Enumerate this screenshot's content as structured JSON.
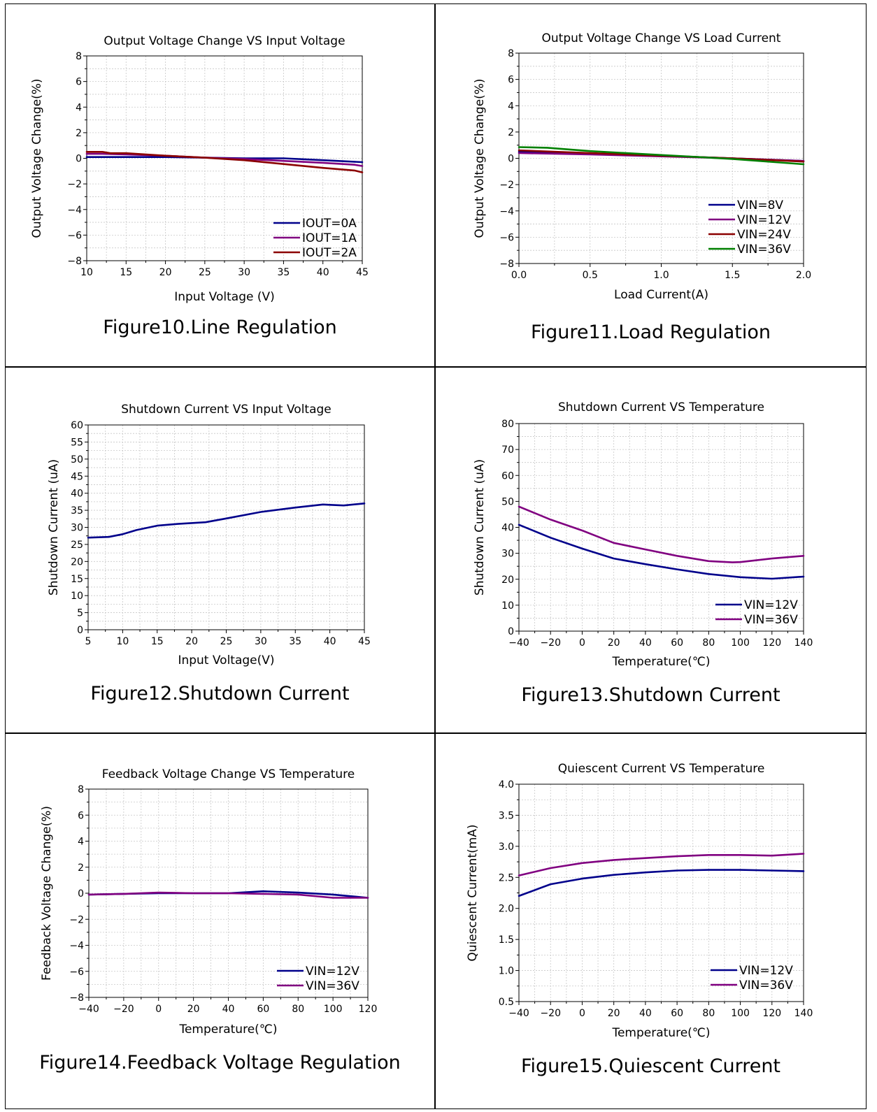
{
  "figures": [
    {
      "caption": "Figure10.Line Regulation",
      "chart_data": {
        "type": "line",
        "title": "Output Voltage Change VS Input Voltage",
        "xlabel": "Input Voltage (V)",
        "ylabel": "Output Voltage Change(%)",
        "xlim": [
          10,
          45
        ],
        "ylim": [
          -8,
          8
        ],
        "xticks": [
          10,
          15,
          20,
          25,
          30,
          35,
          40,
          45
        ],
        "yticks": [
          -8,
          -6,
          -4,
          -2,
          0,
          2,
          4,
          6,
          8
        ],
        "xtick_labels": [
          "10",
          "15",
          "20",
          "25",
          "30",
          "35",
          "40",
          "45"
        ],
        "ytick_labels": [
          "−8",
          "−6",
          "−4",
          "−2",
          "0",
          "2",
          "4",
          "6",
          "8"
        ],
        "legend_position": "bottom-right",
        "grid": true,
        "series": [
          {
            "name": "IOUT=0A",
            "color": "#00008b",
            "x": [
              10,
              12,
              15,
              20,
              25,
              30,
              35,
              40,
              45
            ],
            "y": [
              0.1,
              0.1,
              0.1,
              0.1,
              0.05,
              0.0,
              0.0,
              -0.15,
              -0.3
            ]
          },
          {
            "name": "IOUT=1A",
            "color": "#800080",
            "x": [
              10,
              12,
              15,
              20,
              25,
              30,
              35,
              40,
              44,
              45
            ],
            "y": [
              0.35,
              0.35,
              0.3,
              0.2,
              0.05,
              -0.05,
              -0.2,
              -0.35,
              -0.5,
              -0.6
            ]
          },
          {
            "name": "IOUT=2A",
            "color": "#8b0000",
            "x": [
              10,
              12,
              13,
              15,
              20,
              25,
              30,
              35,
              40,
              44,
              45
            ],
            "y": [
              0.5,
              0.5,
              0.4,
              0.4,
              0.2,
              0.05,
              -0.15,
              -0.45,
              -0.75,
              -0.95,
              -1.1
            ]
          }
        ]
      }
    },
    {
      "caption": "Figure11.Load Regulation",
      "chart_data": {
        "type": "line",
        "title": "Output Voltage Change VS Load Current",
        "xlabel": "Load Current(A)",
        "ylabel": "Output Voltage Change(%)",
        "xlim": [
          0,
          2
        ],
        "ylim": [
          -8,
          8
        ],
        "xticks": [
          0,
          0.5,
          1,
          1.5,
          2
        ],
        "yticks": [
          -8,
          -6,
          -4,
          -2,
          0,
          2,
          4,
          6,
          8
        ],
        "xtick_labels": [
          "0.0",
          "0.5",
          "1.0",
          "1.5",
          "2.0"
        ],
        "ytick_labels": [
          "−8",
          "−6",
          "−4",
          "−2",
          "0",
          "2",
          "4",
          "6",
          "8"
        ],
        "legend_position": "bottom-right",
        "grid": true,
        "series": [
          {
            "name": "VIN=8V",
            "color": "#00008b",
            "x": [
              0,
              0.5,
              1.0,
              1.5,
              2.0
            ],
            "y": [
              0.5,
              0.35,
              0.2,
              0.0,
              -0.2
            ]
          },
          {
            "name": "VIN=12V",
            "color": "#800080",
            "x": [
              0,
              0.5,
              1.0,
              1.5,
              2.0
            ],
            "y": [
              0.4,
              0.3,
              0.15,
              0.0,
              -0.2
            ]
          },
          {
            "name": "VIN=24V",
            "color": "#8b0000",
            "x": [
              0,
              0.5,
              1.0,
              1.5,
              2.0
            ],
            "y": [
              0.6,
              0.4,
              0.2,
              0.0,
              -0.25
            ]
          },
          {
            "name": "VIN=36V",
            "color": "#008000",
            "x": [
              0,
              0.2,
              0.5,
              1.0,
              1.5,
              2.0
            ],
            "y": [
              0.85,
              0.8,
              0.55,
              0.25,
              -0.05,
              -0.45
            ]
          }
        ]
      }
    },
    {
      "caption": "Figure12.Shutdown Current",
      "chart_data": {
        "type": "line",
        "title": "Shutdown Current VS Input Voltage",
        "xlabel": "Input Voltage(V)",
        "ylabel": "Shutdown Current (uA)",
        "xlim": [
          5,
          45
        ],
        "ylim": [
          0,
          60
        ],
        "xticks": [
          5,
          10,
          15,
          20,
          25,
          30,
          35,
          40,
          45
        ],
        "yticks": [
          0,
          5,
          10,
          15,
          20,
          25,
          30,
          35,
          40,
          45,
          50,
          55,
          60
        ],
        "xtick_labels": [
          "5",
          "10",
          "15",
          "20",
          "25",
          "30",
          "35",
          "40",
          "45"
        ],
        "ytick_labels": [
          "0",
          "5",
          "10",
          "15",
          "20",
          "25",
          "30",
          "35",
          "40",
          "45",
          "50",
          "55",
          "60"
        ],
        "legend_position": "none",
        "grid": true,
        "series": [
          {
            "name": "",
            "color": "#00008b",
            "x": [
              5,
              8,
              10,
              12,
              15,
              18,
              22,
              25,
              30,
              35,
              39,
              40,
              42,
              45
            ],
            "y": [
              27,
              27.2,
              28,
              29.2,
              30.5,
              31,
              31.5,
              32.6,
              34.5,
              35.8,
              36.7,
              36.6,
              36.4,
              37
            ]
          }
        ]
      }
    },
    {
      "caption": "Figure13.Shutdown Current",
      "chart_data": {
        "type": "line",
        "title": "Shutdown Current VS Temperature",
        "xlabel": "Temperature(℃)",
        "ylabel": "Shutdown Current (uA)",
        "xlim": [
          -40,
          140
        ],
        "ylim": [
          0,
          80
        ],
        "xticks": [
          -40,
          -20,
          0,
          20,
          40,
          60,
          80,
          100,
          120,
          140
        ],
        "yticks": [
          0,
          10,
          20,
          30,
          40,
          50,
          60,
          70,
          80
        ],
        "xtick_labels": [
          "−40",
          "−20",
          "0",
          "20",
          "40",
          "60",
          "80",
          "100",
          "120",
          "140"
        ],
        "ytick_labels": [
          "0",
          "10",
          "20",
          "30",
          "40",
          "50",
          "60",
          "70",
          "80"
        ],
        "legend_position": "bottom-right",
        "grid": true,
        "series": [
          {
            "name": "VIN=12V",
            "color": "#00008b",
            "x": [
              -40,
              -20,
              0,
              20,
              40,
              60,
              80,
              100,
              120,
              140
            ],
            "y": [
              41,
              36,
              31.8,
              28,
              25.8,
              23.8,
              22,
              20.8,
              20.2,
              21
            ]
          },
          {
            "name": "VIN=36V",
            "color": "#800080",
            "x": [
              -40,
              -20,
              0,
              20,
              40,
              60,
              80,
              95,
              100,
              120,
              140
            ],
            "y": [
              48,
              43,
              38.8,
              34,
              31.5,
              29,
              27,
              26.5,
              26.6,
              28,
              29
            ]
          }
        ]
      }
    },
    {
      "caption": "Figure14.Feedback Voltage Regulation",
      "chart_data": {
        "type": "line",
        "title": "Feedback Voltage Change VS Temperature",
        "xlabel": "Temperature(℃)",
        "ylabel": "Feedback Voltage Change(%)",
        "xlim": [
          -40,
          120
        ],
        "ylim": [
          -8,
          8
        ],
        "xticks": [
          -40,
          -20,
          0,
          20,
          40,
          60,
          80,
          100,
          120
        ],
        "yticks": [
          -8,
          -6,
          -4,
          -2,
          0,
          2,
          4,
          6,
          8
        ],
        "xtick_labels": [
          "−40",
          "−20",
          "0",
          "20",
          "40",
          "60",
          "80",
          "100",
          "120"
        ],
        "ytick_labels": [
          "−8",
          "−6",
          "−4",
          "−2",
          "0",
          "2",
          "4",
          "6",
          "8"
        ],
        "legend_position": "bottom-right",
        "grid": true,
        "series": [
          {
            "name": "VIN=12V",
            "color": "#00008b",
            "x": [
              -40,
              -20,
              0,
              20,
              40,
              60,
              80,
              100,
              120
            ],
            "y": [
              -0.1,
              -0.05,
              0.0,
              0.0,
              0.0,
              0.15,
              0.05,
              -0.1,
              -0.35
            ]
          },
          {
            "name": "VIN=36V",
            "color": "#800080",
            "x": [
              -40,
              -20,
              0,
              20,
              40,
              60,
              80,
              100,
              120
            ],
            "y": [
              -0.1,
              -0.05,
              0.05,
              0.0,
              0.0,
              -0.05,
              -0.1,
              -0.35,
              -0.35
            ]
          }
        ]
      }
    },
    {
      "caption": "Figure15.Quiescent Current",
      "chart_data": {
        "type": "line",
        "title": "Quiescent Current VS Temperature",
        "xlabel": "Temperature(℃)",
        "ylabel": "Quiescent Current(mA)",
        "xlim": [
          -40,
          140
        ],
        "ylim": [
          0.5,
          4.0
        ],
        "xticks": [
          -40,
          -20,
          0,
          20,
          40,
          60,
          80,
          100,
          120,
          140
        ],
        "yticks": [
          0.5,
          1.0,
          1.5,
          2.0,
          2.5,
          3.0,
          3.5,
          4.0
        ],
        "xtick_labels": [
          "−40",
          "−20",
          "0",
          "20",
          "40",
          "60",
          "80",
          "100",
          "120",
          "140"
        ],
        "ytick_labels": [
          "0.5",
          "1.0",
          "1.5",
          "2.0",
          "2.5",
          "3.0",
          "3.5",
          "4.0"
        ],
        "legend_position": "bottom-right",
        "grid": true,
        "series": [
          {
            "name": "VIN=12V",
            "color": "#00008b",
            "x": [
              -40,
              -20,
              0,
              20,
              40,
              60,
              80,
              100,
              120,
              140
            ],
            "y": [
              2.2,
              2.39,
              2.48,
              2.54,
              2.58,
              2.61,
              2.62,
              2.62,
              2.61,
              2.6
            ]
          },
          {
            "name": "VIN=36V",
            "color": "#800080",
            "x": [
              -40,
              -20,
              0,
              20,
              40,
              60,
              80,
              100,
              120,
              140
            ],
            "y": [
              2.53,
              2.65,
              2.73,
              2.78,
              2.81,
              2.84,
              2.86,
              2.86,
              2.85,
              2.88
            ]
          }
        ]
      }
    }
  ]
}
